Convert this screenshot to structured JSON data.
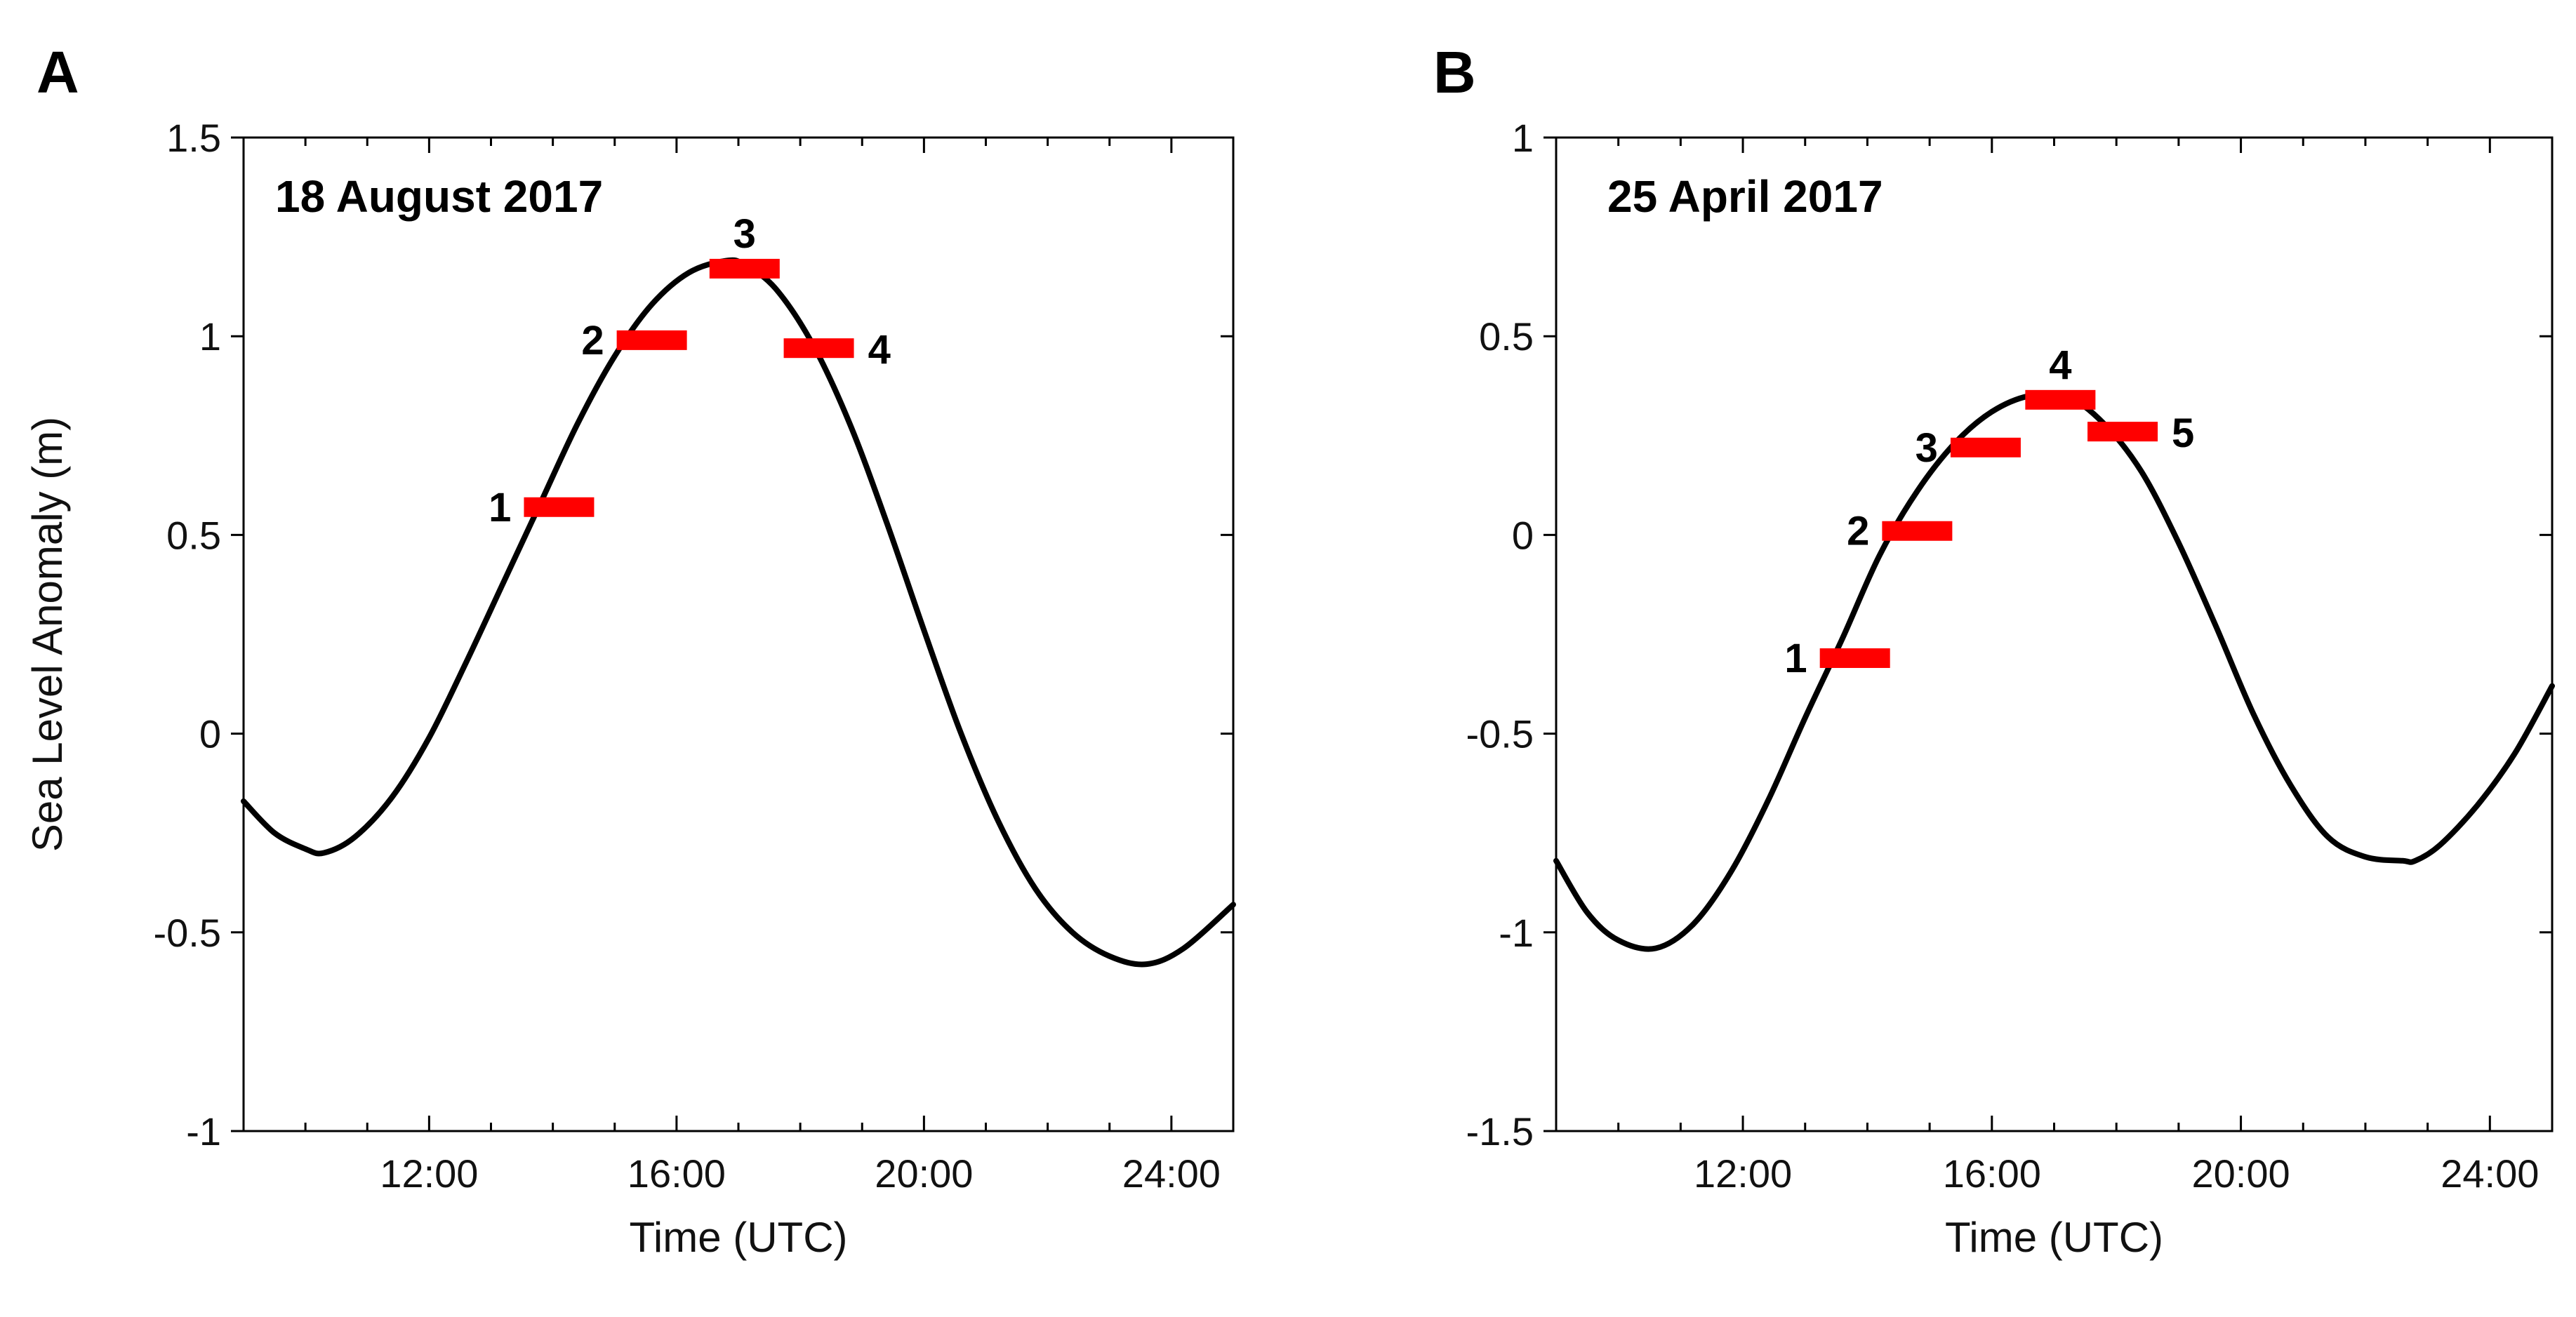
{
  "chart_data": [
    {
      "type": "line",
      "panel": "A",
      "title": "18 August 2017",
      "xlabel": "Time (UTC)",
      "ylabel": "Sea Level Anomaly  (m)",
      "xlim": [
        9,
        25
      ],
      "ylim": [
        -1,
        1.5
      ],
      "x_ticks": [
        12,
        16,
        20,
        24
      ],
      "x_tick_labels": [
        "12:00",
        "16:00",
        "20:00",
        "24:00"
      ],
      "y_ticks": [
        -1,
        -0.5,
        0,
        0.5,
        1,
        1.5
      ],
      "y_tick_labels": [
        "-1",
        "-0.5",
        "0",
        "0.5",
        "1",
        "1.5"
      ],
      "grid": false,
      "series": [
        {
          "x": [
            9.0,
            9.5,
            10.0,
            10.3,
            10.8,
            11.4,
            12.0,
            12.6,
            13.2,
            13.8,
            14.4,
            15.0,
            15.6,
            16.2,
            16.8,
            17.1,
            17.6,
            18.2,
            18.8,
            19.4,
            20.0,
            20.6,
            21.2,
            21.8,
            22.4,
            23.0,
            23.6,
            24.2,
            25.0
          ],
          "y": [
            -0.17,
            -0.25,
            -0.29,
            -0.3,
            -0.26,
            -0.16,
            -0.01,
            0.18,
            0.38,
            0.58,
            0.78,
            0.95,
            1.08,
            1.16,
            1.19,
            1.18,
            1.12,
            0.98,
            0.78,
            0.53,
            0.26,
            0.0,
            -0.22,
            -0.39,
            -0.5,
            -0.56,
            -0.58,
            -0.54,
            -0.43
          ]
        }
      ],
      "markers": [
        {
          "label": "1",
          "x": 14.1,
          "y": 0.57,
          "label_side": "left"
        },
        {
          "label": "2",
          "x": 15.6,
          "y": 0.99,
          "label_side": "left"
        },
        {
          "label": "3",
          "x": 17.1,
          "y": 1.17,
          "label_side": "top"
        },
        {
          "label": "4",
          "x": 18.3,
          "y": 0.97,
          "label_side": "right"
        }
      ]
    },
    {
      "type": "line",
      "panel": "B",
      "title": "25 April 2017",
      "xlabel": "Time (UTC)",
      "ylabel": "",
      "xlim": [
        9,
        25
      ],
      "ylim": [
        -1.5,
        1
      ],
      "x_ticks": [
        12,
        16,
        20,
        24
      ],
      "x_tick_labels": [
        "12:00",
        "16:00",
        "20:00",
        "24:00"
      ],
      "y_ticks": [
        -1.5,
        -1,
        -0.5,
        0,
        0.5,
        1
      ],
      "y_tick_labels": [
        "-1.5",
        "-1",
        "-0.5",
        "0",
        "0.5",
        "1"
      ],
      "grid": false,
      "series": [
        {
          "x": [
            9.0,
            9.5,
            10.0,
            10.6,
            11.2,
            11.8,
            12.4,
            13.0,
            13.6,
            14.2,
            14.8,
            15.4,
            16.0,
            16.6,
            17.2,
            17.8,
            18.4,
            19.0,
            19.6,
            20.2,
            20.8,
            21.4,
            22.0,
            22.6,
            22.8,
            23.2,
            23.8,
            24.4,
            25.0
          ],
          "y": [
            -0.82,
            -0.95,
            -1.02,
            -1.04,
            -0.98,
            -0.85,
            -0.67,
            -0.46,
            -0.26,
            -0.05,
            0.11,
            0.23,
            0.31,
            0.35,
            0.35,
            0.28,
            0.16,
            -0.02,
            -0.23,
            -0.45,
            -0.63,
            -0.76,
            -0.81,
            -0.82,
            -0.82,
            -0.78,
            -0.68,
            -0.55,
            -0.38
          ]
        }
      ],
      "markers": [
        {
          "label": "1",
          "x": 13.8,
          "y": -0.31,
          "label_side": "left"
        },
        {
          "label": "2",
          "x": 14.8,
          "y": 0.01,
          "label_side": "left"
        },
        {
          "label": "3",
          "x": 15.9,
          "y": 0.22,
          "label_side": "left"
        },
        {
          "label": "4",
          "x": 17.1,
          "y": 0.34,
          "label_side": "top"
        },
        {
          "label": "5",
          "x": 18.1,
          "y": 0.26,
          "label_side": "right"
        }
      ]
    }
  ],
  "colors": {
    "line": "#000000",
    "marker": "#ff0000"
  }
}
